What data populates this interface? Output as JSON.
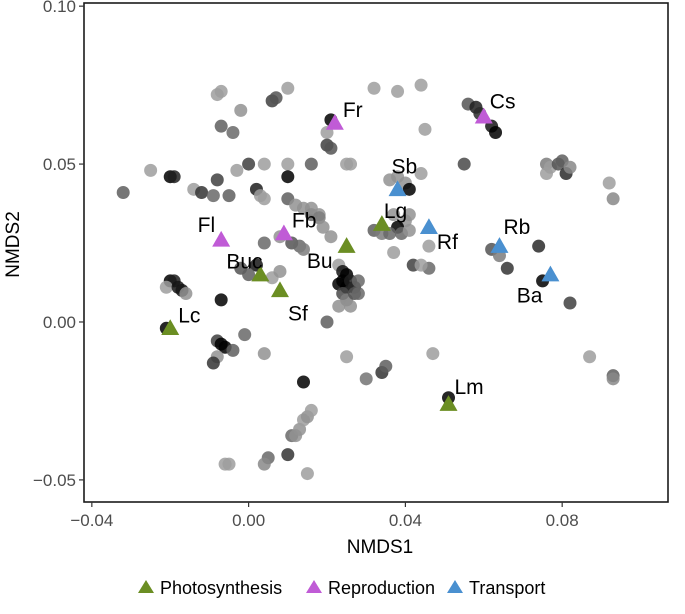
{
  "chart_data": {
    "type": "scatter",
    "title": "",
    "xlabel": "NMDS1",
    "ylabel": "NMDS2",
    "xlim": [
      -0.042,
      0.107
    ],
    "ylim": [
      -0.057,
      0.101
    ],
    "x_ticks": [
      -0.04,
      0.0,
      0.04,
      0.08
    ],
    "x_tick_labels": [
      "−0.04",
      "0.00",
      "0.04",
      "0.08"
    ],
    "y_ticks": [
      -0.05,
      0.0,
      0.05,
      0.1
    ],
    "y_tick_labels": [
      "−0.05",
      "0.00",
      "0.05",
      "0.10"
    ],
    "grid": false,
    "legend": {
      "position": "bottom",
      "entries": [
        {
          "label": "Photosynthesis",
          "color": "#6b8e23",
          "shape": "triangle"
        },
        {
          "label": "Reproduction",
          "color": "#c05bd6",
          "shape": "triangle"
        },
        {
          "label": "Transport",
          "color": "#4a90d0",
          "shape": "triangle"
        }
      ]
    },
    "labeled_points": [
      {
        "label": "Fr",
        "x": 0.022,
        "y": 0.063,
        "group": "Reproduction"
      },
      {
        "label": "Cs",
        "x": 0.06,
        "y": 0.065,
        "group": "Reproduction"
      },
      {
        "label": "Fl",
        "x": -0.007,
        "y": 0.026,
        "group": "Reproduction"
      },
      {
        "label": "Fb",
        "x": 0.009,
        "y": 0.028,
        "group": "Reproduction"
      },
      {
        "label": "Sb",
        "x": 0.038,
        "y": 0.042,
        "group": "Transport"
      },
      {
        "label": "Rf",
        "x": 0.046,
        "y": 0.03,
        "group": "Transport"
      },
      {
        "label": "Rb",
        "x": 0.064,
        "y": 0.024,
        "group": "Transport"
      },
      {
        "label": "Ba",
        "x": 0.077,
        "y": 0.015,
        "group": "Transport"
      },
      {
        "label": "Lg",
        "x": 0.034,
        "y": 0.031,
        "group": "Photosynthesis"
      },
      {
        "label": "Bu",
        "x": 0.025,
        "y": 0.024,
        "group": "Photosynthesis"
      },
      {
        "label": "Buc",
        "x": 0.003,
        "y": 0.015,
        "group": "Photosynthesis"
      },
      {
        "label": "Sf",
        "x": 0.008,
        "y": 0.01,
        "group": "Photosynthesis"
      },
      {
        "label": "Lc",
        "x": -0.02,
        "y": -0.002,
        "group": "Photosynthesis"
      },
      {
        "label": "Lm",
        "x": 0.051,
        "y": -0.026,
        "group": "Photosynthesis"
      }
    ],
    "background_points": [
      [
        -0.032,
        0.041,
        0.55
      ],
      [
        -0.025,
        0.048,
        0.25
      ],
      [
        -0.02,
        0.046,
        1.0
      ],
      [
        -0.019,
        0.046,
        0.85
      ],
      [
        -0.014,
        0.042,
        0.25
      ],
      [
        -0.012,
        0.041,
        0.75
      ],
      [
        -0.009,
        0.04,
        0.5
      ],
      [
        -0.008,
        0.045,
        0.7
      ],
      [
        -0.005,
        0.04,
        0.55
      ],
      [
        -0.003,
        0.048,
        0.25
      ],
      [
        0.0,
        0.05,
        0.7
      ],
      [
        0.002,
        0.042,
        0.85
      ],
      [
        0.003,
        0.04,
        0.25
      ],
      [
        0.004,
        0.039,
        0.25
      ],
      [
        0.004,
        0.05,
        0.25
      ],
      [
        0.01,
        0.05,
        0.25
      ],
      [
        0.01,
        0.046,
        1.0
      ],
      [
        0.016,
        0.05,
        0.55
      ],
      [
        0.01,
        0.039,
        0.55
      ],
      [
        0.012,
        0.037,
        0.3
      ],
      [
        0.014,
        0.036,
        0.3
      ],
      [
        0.016,
        0.034,
        0.5
      ],
      [
        0.018,
        0.034,
        0.3
      ],
      [
        -0.007,
        0.062,
        0.55
      ],
      [
        -0.004,
        0.06,
        0.5
      ],
      [
        -0.002,
        0.067,
        0.3
      ],
      [
        -0.008,
        0.072,
        0.25
      ],
      [
        -0.007,
        0.073,
        0.25
      ],
      [
        0.006,
        0.07,
        0.7
      ],
      [
        0.007,
        0.071,
        0.6
      ],
      [
        0.01,
        0.074,
        0.25
      ],
      [
        0.02,
        0.06,
        0.25
      ],
      [
        0.02,
        0.056,
        0.7
      ],
      [
        0.021,
        0.055,
        0.6
      ],
      [
        0.025,
        0.05,
        0.25
      ],
      [
        0.021,
        0.064,
        1.0
      ],
      [
        0.032,
        0.074,
        0.25
      ],
      [
        0.038,
        0.073,
        0.25
      ],
      [
        0.044,
        0.075,
        0.25
      ],
      [
        0.045,
        0.061,
        0.25
      ],
      [
        0.056,
        0.069,
        0.6
      ],
      [
        0.058,
        0.068,
        0.85
      ],
      [
        0.059,
        0.066,
        0.8
      ],
      [
        0.062,
        0.062,
        0.9
      ],
      [
        0.063,
        0.06,
        1.0
      ],
      [
        0.055,
        0.05,
        0.65
      ],
      [
        0.026,
        0.05,
        0.25
      ],
      [
        0.036,
        0.045,
        0.3
      ],
      [
        0.038,
        0.046,
        0.3
      ],
      [
        0.04,
        0.044,
        0.3
      ],
      [
        0.041,
        0.042,
        1.0
      ],
      [
        0.044,
        0.047,
        0.25
      ],
      [
        0.037,
        0.034,
        0.3
      ],
      [
        0.041,
        0.034,
        0.3
      ],
      [
        0.04,
        0.032,
        0.3
      ],
      [
        0.038,
        0.03,
        1.0
      ],
      [
        0.032,
        0.029,
        0.55
      ],
      [
        0.034,
        0.028,
        0.4
      ],
      [
        0.036,
        0.028,
        0.5
      ],
      [
        0.039,
        0.028,
        0.5
      ],
      [
        0.041,
        0.029,
        0.3
      ],
      [
        0.037,
        0.022,
        0.25
      ],
      [
        0.046,
        0.024,
        0.25
      ],
      [
        0.042,
        0.018,
        0.7
      ],
      [
        0.046,
        0.017,
        0.5
      ],
      [
        0.044,
        0.018,
        0.25
      ],
      [
        0.023,
        0.018,
        0.25
      ],
      [
        0.024,
        0.016,
        0.9
      ],
      [
        0.025,
        0.015,
        1.0
      ],
      [
        0.024,
        0.013,
        1.0
      ],
      [
        0.023,
        0.012,
        1.0
      ],
      [
        0.025,
        0.011,
        1.0
      ],
      [
        0.026,
        0.013,
        0.85
      ],
      [
        0.027,
        0.011,
        0.8
      ],
      [
        0.024,
        0.009,
        0.65
      ],
      [
        0.025,
        0.007,
        0.4
      ],
      [
        0.026,
        0.005,
        0.3
      ],
      [
        0.027,
        0.009,
        0.6
      ],
      [
        0.028,
        0.009,
        0.5
      ],
      [
        0.02,
        0.0,
        0.55
      ],
      [
        0.023,
        0.005,
        0.3
      ],
      [
        0.028,
        0.013,
        0.5
      ],
      [
        0.016,
        0.036,
        0.3
      ],
      [
        0.018,
        0.033,
        0.4
      ],
      [
        0.019,
        0.03,
        0.3
      ],
      [
        0.021,
        0.027,
        0.3
      ],
      [
        0.008,
        0.027,
        0.3
      ],
      [
        0.011,
        0.025,
        0.6
      ],
      [
        0.013,
        0.024,
        0.5
      ],
      [
        0.014,
        0.023,
        0.4
      ],
      [
        0.004,
        0.025,
        0.5
      ],
      [
        0.002,
        0.018,
        0.9
      ],
      [
        -0.002,
        0.017,
        0.6
      ],
      [
        0.0,
        0.015,
        0.55
      ],
      [
        0.006,
        0.014,
        0.25
      ],
      [
        0.008,
        0.016,
        0.3
      ],
      [
        -0.02,
        0.013,
        1.0
      ],
      [
        -0.019,
        0.013,
        0.85
      ],
      [
        -0.021,
        0.011,
        0.25
      ],
      [
        -0.018,
        0.011,
        0.9
      ],
      [
        -0.017,
        0.01,
        0.9
      ],
      [
        -0.016,
        0.009,
        0.3
      ],
      [
        -0.007,
        0.007,
        1.0
      ],
      [
        -0.021,
        -0.002,
        1.0
      ],
      [
        -0.008,
        -0.006,
        0.7
      ],
      [
        -0.007,
        -0.007,
        1.0
      ],
      [
        -0.006,
        -0.008,
        1.0
      ],
      [
        -0.008,
        -0.011,
        0.3
      ],
      [
        -0.009,
        -0.013,
        0.75
      ],
      [
        -0.001,
        -0.004,
        0.5
      ],
      [
        -0.004,
        -0.009,
        0.55
      ],
      [
        0.004,
        -0.01,
        0.3
      ],
      [
        0.014,
        -0.019,
        1.0
      ],
      [
        0.025,
        -0.011,
        0.25
      ],
      [
        0.011,
        -0.036,
        0.5
      ],
      [
        0.012,
        -0.036,
        0.3
      ],
      [
        0.013,
        -0.034,
        0.3
      ],
      [
        0.014,
        -0.031,
        0.25
      ],
      [
        0.015,
        -0.03,
        0.3
      ],
      [
        0.016,
        -0.028,
        0.25
      ],
      [
        0.01,
        -0.042,
        0.75
      ],
      [
        0.015,
        -0.048,
        0.25
      ],
      [
        0.005,
        -0.043,
        0.5
      ],
      [
        0.004,
        -0.045,
        0.35
      ],
      [
        -0.006,
        -0.045,
        0.25
      ],
      [
        -0.005,
        -0.045,
        0.25
      ],
      [
        0.03,
        -0.018,
        0.45
      ],
      [
        0.034,
        -0.016,
        0.75
      ],
      [
        0.035,
        -0.014,
        0.55
      ],
      [
        0.047,
        -0.01,
        0.25
      ],
      [
        0.051,
        -0.024,
        1.0
      ],
      [
        0.062,
        0.023,
        0.6
      ],
      [
        0.064,
        0.021,
        0.4
      ],
      [
        0.066,
        0.017,
        0.75
      ],
      [
        0.074,
        0.024,
        0.8
      ],
      [
        0.075,
        0.013,
        1.0
      ],
      [
        0.082,
        0.006,
        0.7
      ],
      [
        0.087,
        -0.011,
        0.25
      ],
      [
        0.093,
        -0.017,
        0.55
      ],
      [
        0.093,
        -0.018,
        0.35
      ],
      [
        0.076,
        0.05,
        0.4
      ],
      [
        0.076,
        0.047,
        0.25
      ],
      [
        0.077,
        0.049,
        0.25
      ],
      [
        0.079,
        0.05,
        0.6
      ],
      [
        0.08,
        0.051,
        0.55
      ],
      [
        0.081,
        0.047,
        0.8
      ],
      [
        0.082,
        0.049,
        0.35
      ],
      [
        0.092,
        0.044,
        0.25
      ],
      [
        0.093,
        0.039,
        0.35
      ]
    ]
  }
}
